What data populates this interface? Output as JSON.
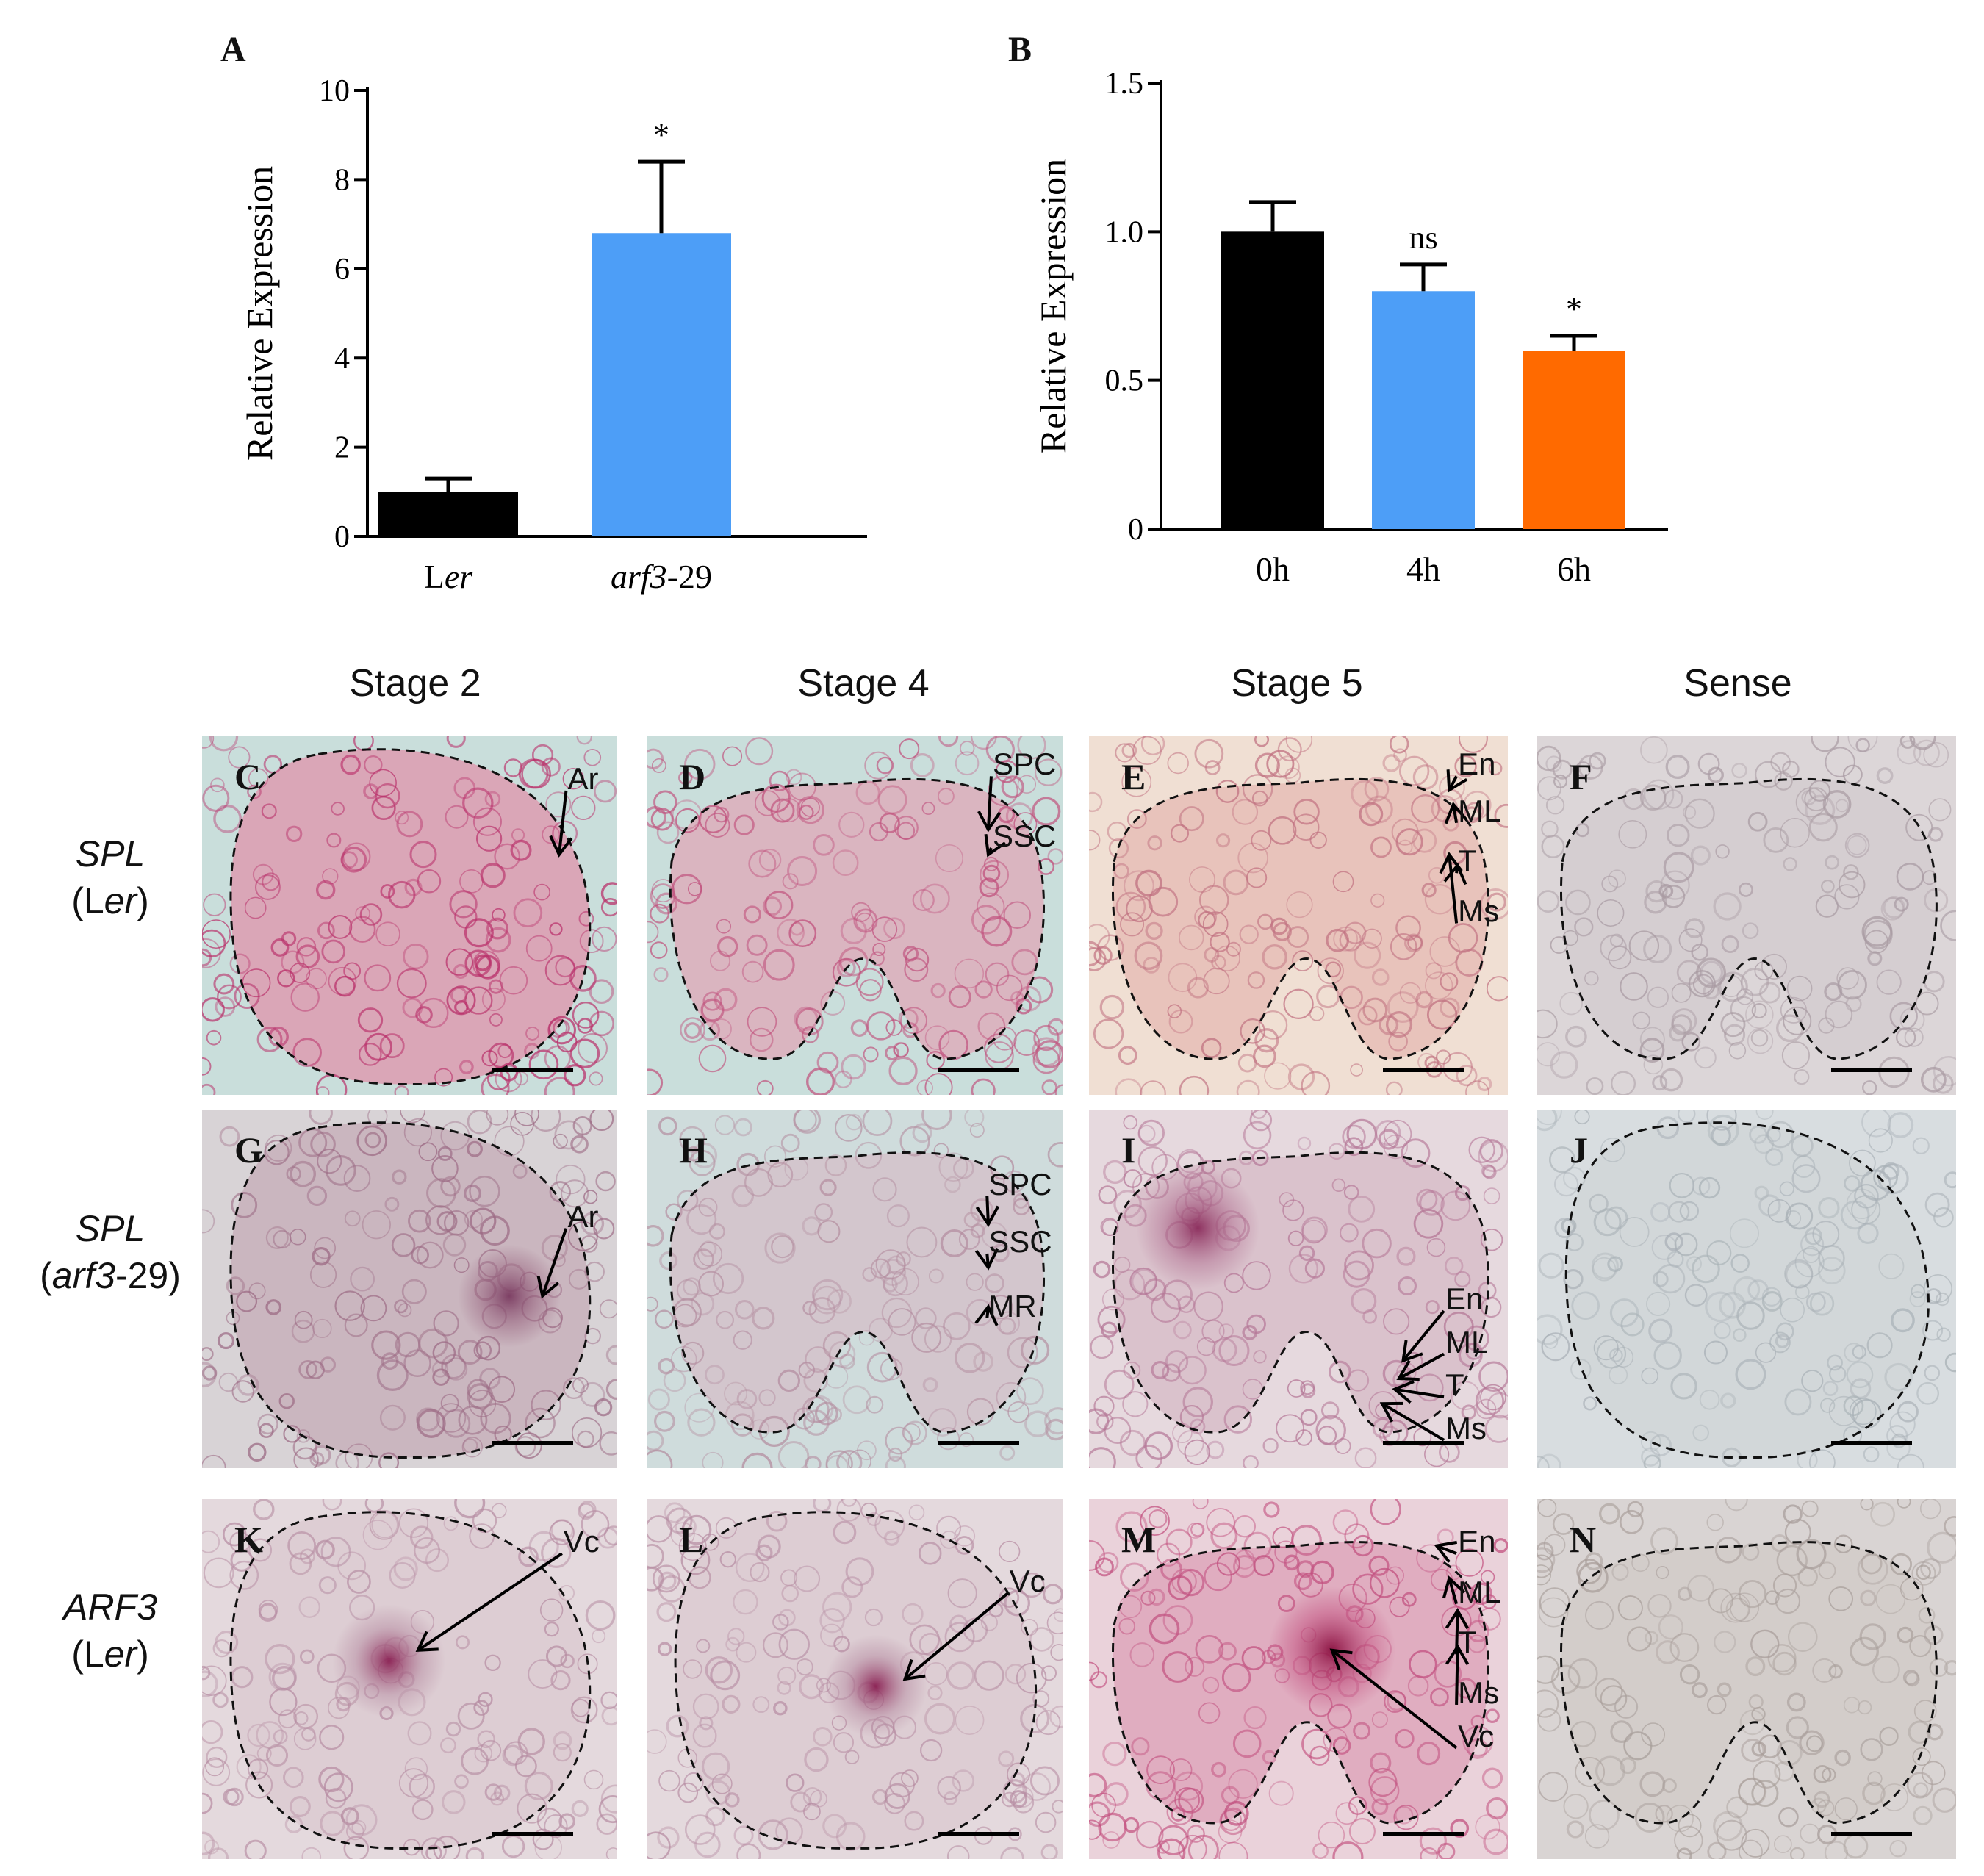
{
  "panels": {
    "A": {
      "letter": "A",
      "chart_data": {
        "type": "bar",
        "categories": [
          "Ler",
          "arf3-29"
        ],
        "category_display": [
          {
            "pre": "L",
            "ital": "er",
            "post": ""
          },
          {
            "pre": "",
            "ital": "arf3",
            "post": "-29"
          }
        ],
        "values": [
          1.0,
          6.8
        ],
        "errors": [
          0.3,
          1.6
        ],
        "annotations": [
          "",
          "*"
        ],
        "colors": [
          "#000000",
          "#4d9ef7"
        ],
        "ylabel": "Relative Expression",
        "ylim": [
          0,
          10
        ],
        "yticks": [
          0,
          2,
          4,
          6,
          8,
          10
        ]
      }
    },
    "B": {
      "letter": "B",
      "chart_data": {
        "type": "bar",
        "categories": [
          "0h",
          "4h",
          "6h"
        ],
        "values": [
          1.0,
          0.8,
          0.6
        ],
        "errors": [
          0.1,
          0.09,
          0.05
        ],
        "annotations": [
          "",
          "ns",
          "*"
        ],
        "colors": [
          "#000000",
          "#4d9ef7",
          "#ff6a00"
        ],
        "ylabel": "Relative Expression",
        "ylim": [
          0,
          1.5
        ],
        "yticks": [
          "0",
          "0.5",
          "1.0",
          "1.5"
        ]
      }
    }
  },
  "column_headers": [
    "Stage 2",
    "Stage 4",
    "Stage 5",
    "Sense"
  ],
  "row_labels": [
    {
      "gene": "SPL",
      "genotype_pre": "(L",
      "genotype_ital": "er",
      "genotype_post": ")"
    },
    {
      "gene": "SPL",
      "genotype_pre": "(",
      "genotype_ital": "arf3",
      "genotype_post": "-29)"
    },
    {
      "gene": "ARF3",
      "genotype_pre": "(L",
      "genotype_ital": "er",
      "genotype_post": ")"
    }
  ],
  "tiles": [
    {
      "letter": "C",
      "labels": [
        "Ar"
      ]
    },
    {
      "letter": "D",
      "labels": [
        "SPC",
        "SSC"
      ]
    },
    {
      "letter": "E",
      "labels": [
        "En",
        "ML",
        "T",
        "Ms"
      ]
    },
    {
      "letter": "F",
      "labels": []
    },
    {
      "letter": "G",
      "labels": [
        "Ar"
      ]
    },
    {
      "letter": "H",
      "labels": [
        "SPC",
        "SSC",
        "MR"
      ]
    },
    {
      "letter": "I",
      "labels": [
        "En",
        "ML",
        "T",
        "Ms"
      ]
    },
    {
      "letter": "J",
      "labels": []
    },
    {
      "letter": "K",
      "labels": [
        "Vc"
      ]
    },
    {
      "letter": "L",
      "labels": [
        "Vc"
      ]
    },
    {
      "letter": "M",
      "labels": [
        "En",
        "ML",
        "T",
        "Ms",
        "Vc"
      ]
    },
    {
      "letter": "N",
      "labels": []
    }
  ],
  "colors": {
    "stain": "#b8265a",
    "tissue_pink": "#e7c0c9",
    "tissue_grey": "#d9d6d8",
    "background_blue": "#cfe3e0"
  }
}
